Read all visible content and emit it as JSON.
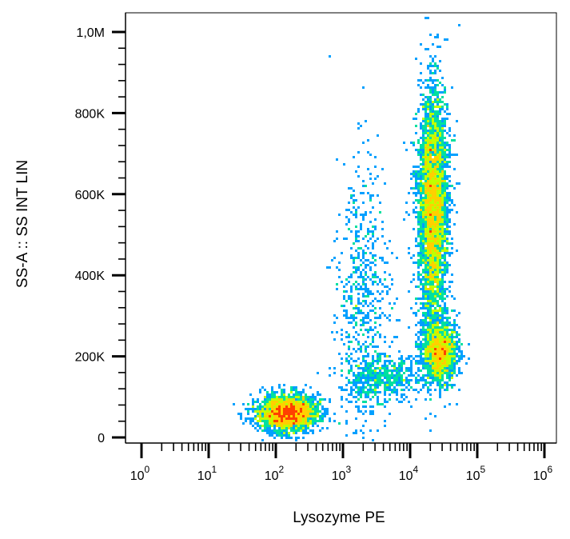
{
  "chart_data": {
    "type": "scatter",
    "subtype": "flow-cytometry density dot plot",
    "xlabel": "Lysozyme PE",
    "ylabel": "SS-A :: SS INT LIN",
    "x_scale": "log",
    "xlim": [
      1,
      1000000
    ],
    "ylim": [
      0,
      1000000
    ],
    "x_ticks": [
      {
        "value": 1,
        "base": "10",
        "exp": "0"
      },
      {
        "value": 10,
        "base": "10",
        "exp": "1"
      },
      {
        "value": 100,
        "base": "10",
        "exp": "2"
      },
      {
        "value": 1000,
        "base": "10",
        "exp": "3"
      },
      {
        "value": 10000,
        "base": "10",
        "exp": "4"
      },
      {
        "value": 100000,
        "base": "10",
        "exp": "5"
      },
      {
        "value": 1000000,
        "base": "10",
        "exp": "6"
      }
    ],
    "y_ticks": [
      {
        "value": 0,
        "label": "0"
      },
      {
        "value": 200000,
        "label": "200K"
      },
      {
        "value": 400000,
        "label": "400K"
      },
      {
        "value": 600000,
        "label": "600K"
      },
      {
        "value": 800000,
        "label": "800K"
      },
      {
        "value": 1000000,
        "label": "1,0M"
      }
    ],
    "color_scale": [
      "#0000ff",
      "#00a0ff",
      "#00e0a0",
      "#c0ff00",
      "#ffd000",
      "#ff4000"
    ],
    "populations": [
      {
        "x_center": 150,
        "y_center": 60000,
        "log_x_spread": 0.22,
        "y_spread": 22000,
        "count": 2600
      },
      {
        "x_center": 22000,
        "y_center": 560000,
        "log_x_spread": 0.11,
        "y_spread": 150000,
        "count": 4200
      },
      {
        "x_center": 28000,
        "y_center": 210000,
        "log_x_spread": 0.13,
        "y_spread": 38000,
        "count": 1500
      },
      {
        "x_center": 2000,
        "y_center": 330000,
        "log_x_spread": 0.2,
        "y_spread": 180000,
        "count": 650
      },
      {
        "x_center": 4000,
        "y_center": 150000,
        "log_x_spread": 0.3,
        "y_spread": 30000,
        "count": 500
      }
    ]
  }
}
